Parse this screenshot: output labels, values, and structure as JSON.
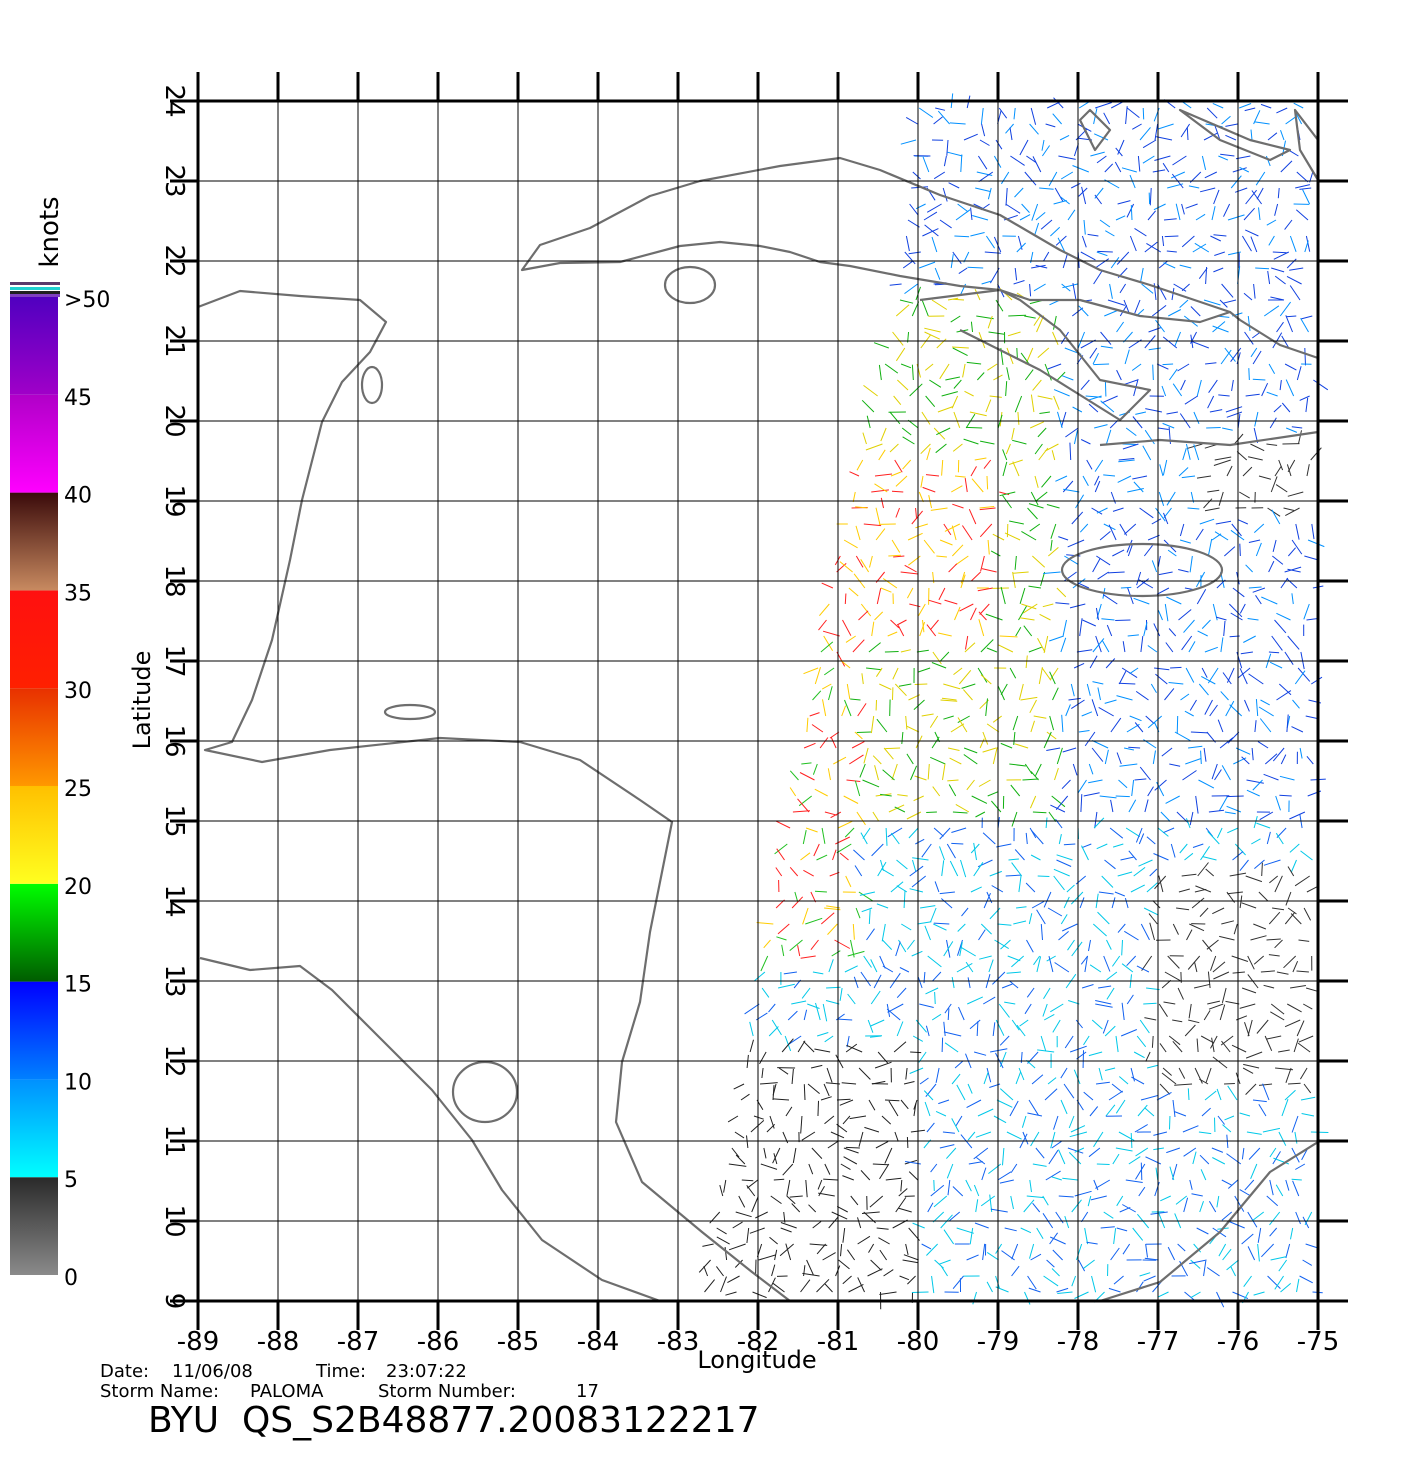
{
  "map": {
    "title": "BYU  QS_S2B48877.20083122217",
    "x_label": "Longitude",
    "y_label": "Latitude",
    "lon_ticks": [
      -89,
      -88,
      -87,
      -86,
      -85,
      -84,
      -83,
      -82,
      -81,
      -80,
      -79,
      -78,
      -77,
      -76,
      -75
    ],
    "lat_ticks": [
      9,
      10,
      11,
      12,
      13,
      14,
      15,
      16,
      17,
      18,
      19,
      20,
      21,
      22,
      23,
      24
    ],
    "colorbar": {
      "unit": "knots",
      "ticks": [
        0,
        5,
        10,
        15,
        20,
        25,
        30,
        35,
        40,
        45,
        {
          "value": 50,
          "label": ">50"
        }
      ]
    },
    "info": {
      "date_label": "Date:",
      "date": "11/06/08",
      "time_label": "Time:",
      "time": "23:07:22",
      "storm_name_label": "Storm  Name:",
      "storm_name": "PALOMA",
      "storm_number_label": "Storm  Number:",
      "storm_number": "17"
    }
  }
}
